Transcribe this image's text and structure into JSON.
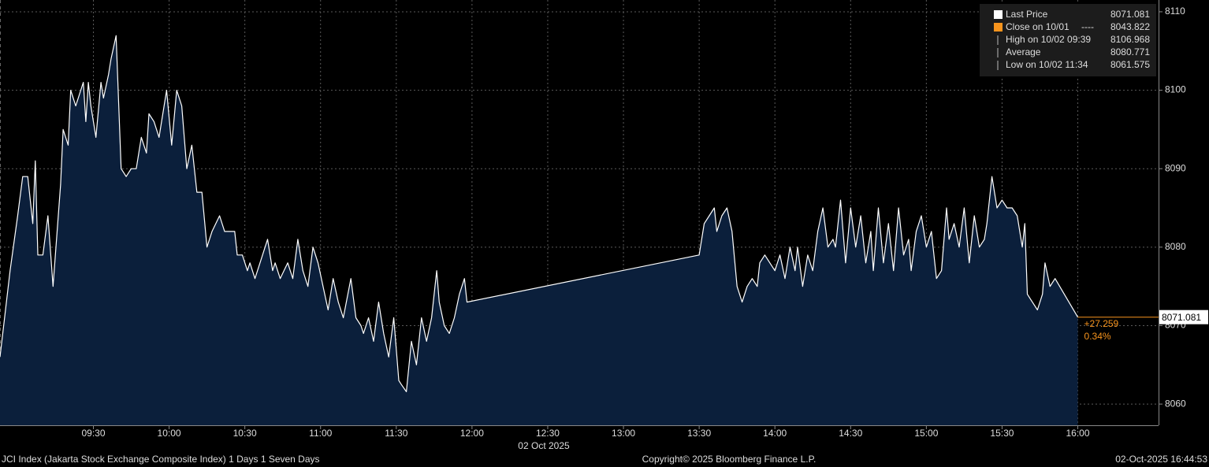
{
  "chart_data": {
    "type": "area",
    "x_date_label": "02 Oct 2025",
    "footer_left": "JCI Index (Jakarta Stock Exchange Composite Index) 1 Days 1 Seven Days",
    "footer_center": "Copyright© 2025 Bloomberg Finance L.P.",
    "footer_right": "02-Oct-2025 16:44:53",
    "change": "+27.259",
    "change_pct": "0.34%",
    "grid": true,
    "legend_position": "top-right",
    "xlim": [
      "08:53",
      "16:32"
    ],
    "xticks": [
      "09:30",
      "10:00",
      "10:30",
      "11:00",
      "11:30",
      "12:00",
      "12:30",
      "13:00",
      "13:30",
      "14:00",
      "14:30",
      "15:00",
      "15:30",
      "16:00"
    ],
    "ylim": [
      8057.3,
      8111.5
    ],
    "yticks": [
      8060,
      8070,
      8080,
      8090,
      8100,
      8110
    ],
    "x": [
      "08:53",
      "08:57",
      "09:00",
      "09:02",
      "09:04",
      "09:06",
      "09:07",
      "09:08",
      "09:10",
      "09:12",
      "09:14",
      "09:17",
      "09:18",
      "09:20",
      "09:21",
      "09:23",
      "09:24",
      "09:26",
      "09:27",
      "09:28",
      "09:29",
      "09:31",
      "09:33",
      "09:34",
      "09:36",
      "09:37",
      "09:39",
      "09:41",
      "09:43",
      "09:45",
      "09:47",
      "09:49",
      "09:51",
      "09:52",
      "09:54",
      "09:56",
      "09:58",
      "09:59",
      "10:01",
      "10:03",
      "10:05",
      "10:07",
      "10:09",
      "10:11",
      "10:13",
      "10:15",
      "10:17",
      "10:20",
      "10:22",
      "10:24",
      "10:26",
      "10:27",
      "10:29",
      "10:31",
      "10:32",
      "10:34",
      "10:36",
      "10:39",
      "10:41",
      "10:42",
      "10:44",
      "10:47",
      "10:49",
      "10:51",
      "10:53",
      "10:55",
      "10:57",
      "10:59",
      "11:01",
      "11:03",
      "11:05",
      "11:07",
      "11:09",
      "11:12",
      "11:14",
      "11:16",
      "11:17",
      "11:19",
      "11:21",
      "11:23",
      "11:25",
      "11:27",
      "11:29",
      "11:31",
      "11:32",
      "11:34",
      "11:36",
      "11:38",
      "11:40",
      "11:42",
      "11:44",
      "11:46",
      "11:47",
      "11:49",
      "11:51",
      "11:53",
      "11:55",
      "11:57",
      "11:58",
      "13:30",
      "13:32",
      "13:34",
      "13:36",
      "13:37",
      "13:39",
      "13:41",
      "13:43",
      "13:45",
      "13:47",
      "13:49",
      "13:51",
      "13:53",
      "13:54",
      "13:56",
      "13:58",
      "14:00",
      "14:02",
      "14:04",
      "14:06",
      "14:08",
      "14:09",
      "14:11",
      "14:13",
      "14:15",
      "14:17",
      "14:19",
      "14:21",
      "14:23",
      "14:24",
      "14:26",
      "14:28",
      "14:30",
      "14:32",
      "14:34",
      "14:36",
      "14:38",
      "14:39",
      "14:41",
      "14:43",
      "14:45",
      "14:47",
      "14:49",
      "14:51",
      "14:53",
      "14:54",
      "14:56",
      "14:58",
      "15:00",
      "15:02",
      "15:04",
      "15:06",
      "15:08",
      "15:09",
      "15:11",
      "15:13",
      "15:15",
      "15:17",
      "15:19",
      "15:21",
      "15:23",
      "15:24",
      "15:26",
      "15:28",
      "15:30",
      "15:32",
      "15:34",
      "15:36",
      "15:38",
      "15:39",
      "15:40",
      "15:42",
      "15:44",
      "15:46",
      "15:47",
      "15:49",
      "15:51",
      "16:00"
    ],
    "series": [
      {
        "name": "Last Price",
        "color": "#ffffff",
        "fill": "#0b1f3b",
        "tag_color": "#f7941d",
        "values": [
          8066,
          8077,
          8084,
          8089,
          8089,
          8083,
          8091,
          8079,
          8079,
          8084,
          8075,
          8088,
          8095,
          8093,
          8100,
          8098,
          8099,
          8101,
          8096,
          8101,
          8098,
          8094,
          8101,
          8099,
          8102,
          8104,
          8106.968,
          8090,
          8089,
          8090,
          8090,
          8094,
          8092,
          8097,
          8096,
          8094,
          8098,
          8100,
          8093,
          8100,
          8098,
          8090,
          8093,
          8087,
          8087,
          8080,
          8082,
          8084,
          8082,
          8082,
          8082,
          8079,
          8079,
          8077,
          8078,
          8076,
          8078,
          8081,
          8077,
          8078,
          8076,
          8078,
          8076,
          8081,
          8077,
          8075,
          8080,
          8078,
          8075,
          8072,
          8076,
          8073,
          8071,
          8076,
          8071,
          8070,
          8069,
          8071,
          8068,
          8073,
          8069,
          8066,
          8071,
          8063,
          8062.5,
          8061.575,
          8068,
          8065,
          8071,
          8068,
          8071,
          8077,
          8073,
          8070,
          8069,
          8071,
          8074,
          8076,
          8073,
          8079,
          8083,
          8084,
          8085,
          8082,
          8084,
          8085,
          8082,
          8075,
          8073,
          8075,
          8076,
          8075,
          8078,
          8079,
          8078,
          8077,
          8079,
          8076,
          8080,
          8077,
          8080,
          8075,
          8079,
          8077,
          8082,
          8085,
          8080,
          8081,
          8080,
          8086,
          8078,
          8085,
          8080,
          8084,
          8078,
          8082,
          8077,
          8085,
          8078,
          8083,
          8077,
          8085,
          8079,
          8081,
          8077,
          8082,
          8084,
          8080,
          8082,
          8076,
          8077,
          8085,
          8081,
          8083,
          8080,
          8085,
          8078,
          8084,
          8080,
          8081,
          8083,
          8089,
          8085,
          8086,
          8085,
          8085,
          8084,
          8080,
          8083,
          8074,
          8073,
          8072,
          8074,
          8078,
          8075,
          8076,
          8071.081
        ]
      }
    ],
    "legend_stats": [
      {
        "name": "Close on 10/01",
        "line": "----",
        "value": 8043.822,
        "color": "#f7941d"
      },
      {
        "name": "High on 10/02 09:39",
        "value": 8106.968,
        "color": "#bbbbbb"
      },
      {
        "name": "Average",
        "value": 8080.771,
        "color": "#bbbbbb"
      },
      {
        "name": "Low on 10/02 11:34",
        "value": 8061.575,
        "color": "#bbbbbb"
      }
    ]
  }
}
